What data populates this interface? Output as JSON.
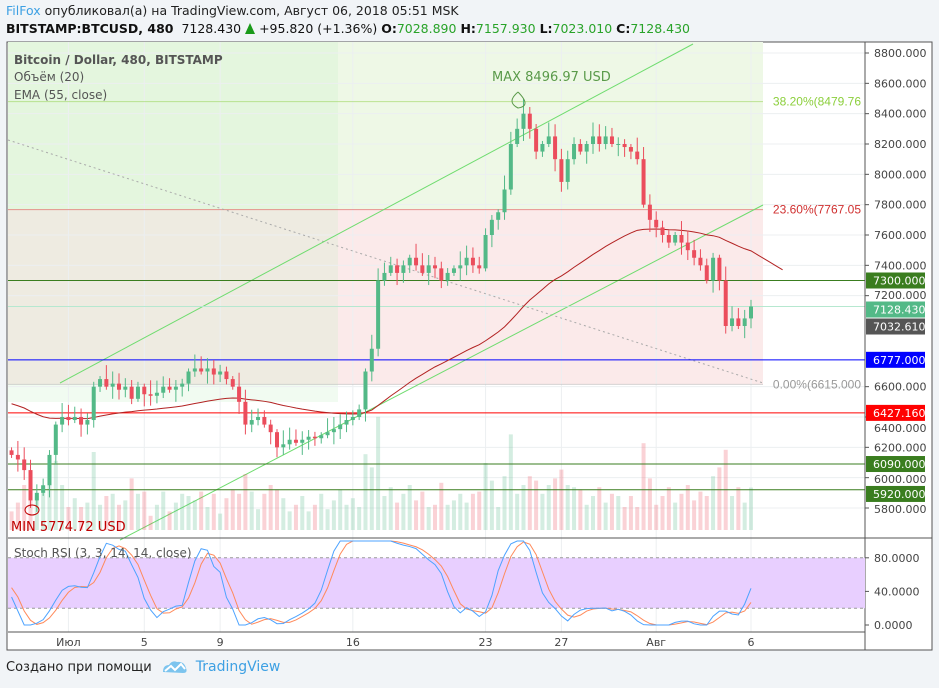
{
  "header": {
    "author": "FilFox",
    "published": "опубликовал(а) на TradingView.com, Август 06, 2018 05:51 MSK",
    "symbol": "BITSTAMP:BTCUSD, 480",
    "last": "7128.430",
    "change": "+95.820 (+1.36%)",
    "o_label": "O:",
    "o": "7028.890",
    "h_label": "H:",
    "h": "7157.930",
    "l_label": "L:",
    "l": "7023.010",
    "c_label": "C:",
    "c": "7128.430"
  },
  "legend": {
    "title": "Bitcoin / Dollar, 480, BITSTAMP",
    "volume": "Объём (20)",
    "ema": "EMA (55, close)",
    "stoch": "Stoch RSI (3, 3, 14, 14, close)"
  },
  "annotations": {
    "max": "MAX 8496.97 USD",
    "min": "MIN 5774.72 USD",
    "fib_382": "38.20%(8479.76",
    "fib_236": "23.60%(7767.05",
    "fib_0": "0.00%(6615.000"
  },
  "footer": {
    "made_with": "Создано при помощи",
    "brand": "TradingView"
  },
  "colors": {
    "up": "#53b987",
    "down": "#eb4d5c",
    "ema": "#b22222",
    "channel": "#6fdc6f",
    "stoch_k": "#4da3ff",
    "stoch_d": "#ff8a5b",
    "accent": "#3da0e3"
  },
  "chart_data": {
    "type": "candlestick",
    "interval": "480",
    "ylim": [
      5700,
      8850
    ],
    "y_ticks": [
      5800,
      6000,
      6200,
      6400,
      6600,
      7200,
      7400,
      7600,
      7800,
      8000,
      8200,
      8400,
      8600,
      8800
    ],
    "y_tick_labels": [
      "5800.000",
      "6000.000",
      "6200.000",
      "6400.000",
      "6600.000",
      "7200.000",
      "7400.000",
      "7600.000",
      "7800.000",
      "8000.000",
      "8200.000",
      "8400.000",
      "8600.000",
      "8800.000"
    ],
    "x_tick_labels": [
      "Июл",
      "5",
      "9",
      "16",
      "23",
      "27",
      "Авг",
      "6"
    ],
    "x_tick_candle_index": [
      9,
      21,
      33,
      54,
      75,
      87,
      102,
      117
    ],
    "first_open": 6180,
    "close": [
      6150,
      6120,
      6050,
      5850,
      5900,
      5950,
      6150,
      6350,
      6400,
      6380,
      6400,
      6350,
      6380,
      6600,
      6650,
      6600,
      6620,
      6580,
      6600,
      6520,
      6600,
      6550,
      6540,
      6560,
      6600,
      6580,
      6600,
      6620,
      6700,
      6720,
      6700,
      6720,
      6680,
      6700,
      6650,
      6600,
      6500,
      6350,
      6380,
      6400,
      6350,
      6300,
      6200,
      6220,
      6250,
      6230,
      6250,
      6270,
      6260,
      6280,
      6300,
      6320,
      6350,
      6380,
      6400,
      6450,
      6700,
      6850,
      7300,
      7350,
      7400,
      7350,
      7400,
      7450,
      7400,
      7350,
      7400,
      7380,
      7300,
      7350,
      7380,
      7400,
      7450,
      7400,
      7380,
      7600,
      7700,
      7750,
      7900,
      8200,
      8300,
      8400,
      8300,
      8150,
      8200,
      8250,
      8100,
      7950,
      8100,
      8200,
      8150,
      8200,
      8250,
      8200,
      8250,
      8200,
      8200,
      8180,
      8150,
      8100,
      7800,
      7700,
      7650,
      7600,
      7550,
      7600,
      7550,
      7500,
      7450,
      7400,
      7300,
      7450,
      7300,
      7000,
      7050,
      7000,
      7050,
      7128.43
    ],
    "levels": [
      {
        "price": 7300,
        "label": "7300.000",
        "color": "#3a7d1f"
      },
      {
        "price": 6777,
        "label": "6777.000",
        "color": "#0000ff"
      },
      {
        "price": 6427.16,
        "label": "6427.160",
        "color": "#ff0000"
      },
      {
        "price": 6090,
        "label": "6090.000",
        "color": "#3a7d1f"
      },
      {
        "price": 5920,
        "label": "5920.000",
        "color": "#3a7d1f"
      }
    ],
    "last_price": {
      "price": 7128.43,
      "label": "7128.430",
      "color": "#53b987"
    },
    "prev_close": {
      "price": 7032.61,
      "label": "7032.610",
      "color": "#555555"
    },
    "fib": [
      {
        "level": "38.20%",
        "price": 8479.76
      },
      {
        "level": "23.60%",
        "price": 7767.05
      },
      {
        "level": "0.00%",
        "price": 6615
      }
    ],
    "max": 8496.97,
    "min": 5774.72,
    "stoch_ylim": [
      0,
      100
    ],
    "stoch_ticks": [
      "80.0000",
      "40.0000",
      "0.0000"
    ],
    "stoch_band": [
      20,
      80
    ]
  }
}
